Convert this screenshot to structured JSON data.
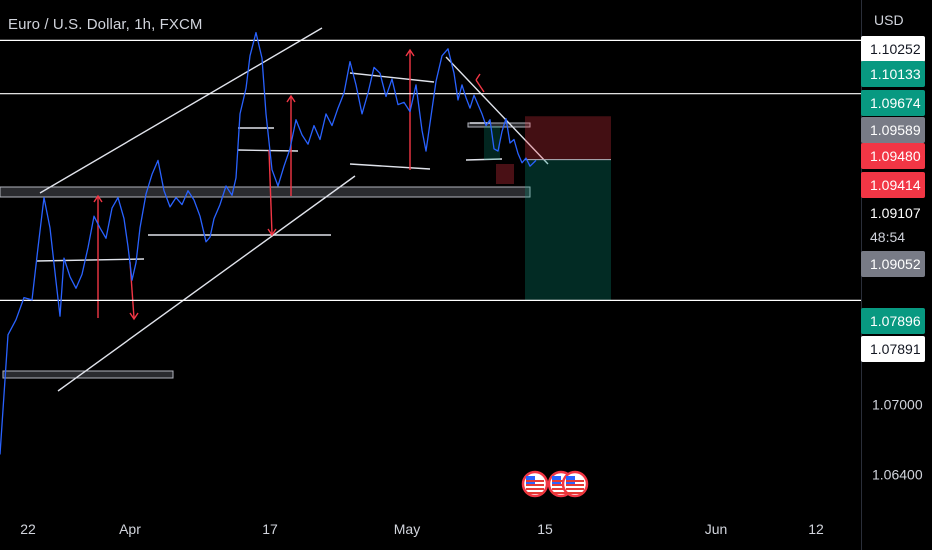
{
  "header": {
    "title": "Euro / U.S. Dollar, 1h, FXCM",
    "currency": "USD"
  },
  "chart_data": {
    "type": "line",
    "symbol": "EURUSD",
    "interval": "1h",
    "ylim": [
      1.0605,
      1.1048
    ],
    "x_ticks": [
      "22",
      "Apr",
      "17",
      "May",
      "15",
      "Jun",
      "12"
    ],
    "y_ticks": [
      "1.07000",
      "1.06400"
    ],
    "price_labels": [
      {
        "text": "1.10252",
        "bg": "#ffffff",
        "fg": "#131722",
        "value": 1.10252
      },
      {
        "text": "1.10133",
        "bg": "#089981",
        "fg": "#ffffff",
        "value": 1.10133
      },
      {
        "text": "1.09674",
        "bg": "#089981",
        "fg": "#ffffff",
        "value": 1.09674
      },
      {
        "text": "1.09589",
        "bg": "#787b86",
        "fg": "#ffffff",
        "value": 1.09589
      },
      {
        "text": "1.09480",
        "bg": "#f23645",
        "fg": "#ffffff",
        "value": 1.0948
      },
      {
        "text": "1.09414",
        "bg": "#f23645",
        "fg": "#ffffff",
        "value": 1.09414
      },
      {
        "text": "1.09107",
        "bg": "#000000",
        "fg": "#ffffff",
        "value": 1.09107
      },
      {
        "text": "1.09052",
        "bg": "#787b86",
        "fg": "#ffffff",
        "value": 1.09052
      },
      {
        "text": "1.07896",
        "bg": "#089981",
        "fg": "#ffffff",
        "value": 1.07896
      },
      {
        "text": "1.07891",
        "bg": "#ffffff",
        "fg": "#131722",
        "value": 1.07891
      }
    ],
    "countdown": "48:54",
    "series": [
      {
        "color": "#2962ff",
        "points": [
          [
            0,
            1.0657
          ],
          [
            8,
            1.076
          ],
          [
            16,
            1.0773
          ],
          [
            24,
            1.0792
          ],
          [
            32,
            1.079
          ],
          [
            38,
            1.0835
          ],
          [
            44,
            1.0878
          ],
          [
            50,
            1.0852
          ],
          [
            56,
            1.0806
          ],
          [
            60,
            1.0776
          ],
          [
            64,
            1.0826
          ],
          [
            70,
            1.081
          ],
          [
            76,
            1.08
          ],
          [
            82,
            1.0812
          ],
          [
            88,
            1.0835
          ],
          [
            94,
            1.0862
          ],
          [
            100,
            1.0852
          ],
          [
            106,
            1.0843
          ],
          [
            112,
            1.0869
          ],
          [
            118,
            1.0878
          ],
          [
            124,
            1.086
          ],
          [
            128,
            1.0836
          ],
          [
            132,
            1.0807
          ],
          [
            136,
            1.0822
          ],
          [
            140,
            1.0852
          ],
          [
            146,
            1.0881
          ],
          [
            152,
            1.0898
          ],
          [
            158,
            1.091
          ],
          [
            164,
            1.0884
          ],
          [
            170,
            1.087
          ],
          [
            176,
            1.0878
          ],
          [
            182,
            1.0872
          ],
          [
            188,
            1.0884
          ],
          [
            194,
            1.0876
          ],
          [
            200,
            1.0862
          ],
          [
            206,
            1.084
          ],
          [
            210,
            1.0844
          ],
          [
            214,
            1.086
          ],
          [
            220,
            1.0872
          ],
          [
            226,
            1.0888
          ],
          [
            232,
            1.088
          ],
          [
            236,
            1.0895
          ],
          [
            240,
            1.095
          ],
          [
            246,
            1.0972
          ],
          [
            250,
            1.1
          ],
          [
            256,
            1.102
          ],
          [
            262,
            1.0998
          ],
          [
            266,
            1.095
          ],
          [
            272,
            1.0902
          ],
          [
            278,
            1.0888
          ],
          [
            284,
            1.0905
          ],
          [
            290,
            1.092
          ],
          [
            296,
            1.0945
          ],
          [
            302,
            1.0932
          ],
          [
            308,
            1.0924
          ],
          [
            314,
            1.094
          ],
          [
            320,
            1.0928
          ],
          [
            326,
            1.095
          ],
          [
            332,
            1.094
          ],
          [
            338,
            1.0955
          ],
          [
            344,
            1.0968
          ],
          [
            350,
            1.0995
          ],
          [
            356,
            1.0975
          ],
          [
            362,
            1.095
          ],
          [
            368,
            1.0968
          ],
          [
            374,
            1.099
          ],
          [
            380,
            1.0985
          ],
          [
            386,
            1.0965
          ],
          [
            392,
            1.098
          ],
          [
            398,
            1.0958
          ],
          [
            404,
            1.096
          ],
          [
            410,
            1.0952
          ],
          [
            416,
            1.0975
          ],
          [
            422,
            1.0936
          ],
          [
            426,
            1.0918
          ],
          [
            430,
            1.0942
          ],
          [
            436,
            1.0978
          ],
          [
            442,
            1.1
          ],
          [
            448,
            1.1006
          ],
          [
            454,
            1.0985
          ],
          [
            458,
            1.0962
          ],
          [
            462,
            1.0975
          ],
          [
            466,
            1.0964
          ],
          [
            470,
            1.0955
          ],
          [
            474,
            1.0966
          ],
          [
            478,
            1.0958
          ],
          [
            482,
            1.095
          ],
          [
            486,
            1.094
          ],
          [
            490,
            1.0945
          ],
          [
            494,
            1.092
          ],
          [
            498,
            1.0918
          ],
          [
            502,
            1.0935
          ],
          [
            506,
            1.0946
          ],
          [
            510,
            1.0925
          ],
          [
            514,
            1.0928
          ],
          [
            518,
            1.0916
          ],
          [
            522,
            1.0908
          ],
          [
            526,
            1.0912
          ],
          [
            530,
            1.0905
          ],
          [
            536,
            1.091
          ]
        ]
      }
    ],
    "horizontal_levels": [
      1.10133,
      1.09674,
      1.07896
    ],
    "position": {
      "entry": 1.09107,
      "stop": 1.0948,
      "target": 1.07896
    },
    "events": [
      "flag-us",
      "flag-us",
      "flag-us"
    ]
  }
}
